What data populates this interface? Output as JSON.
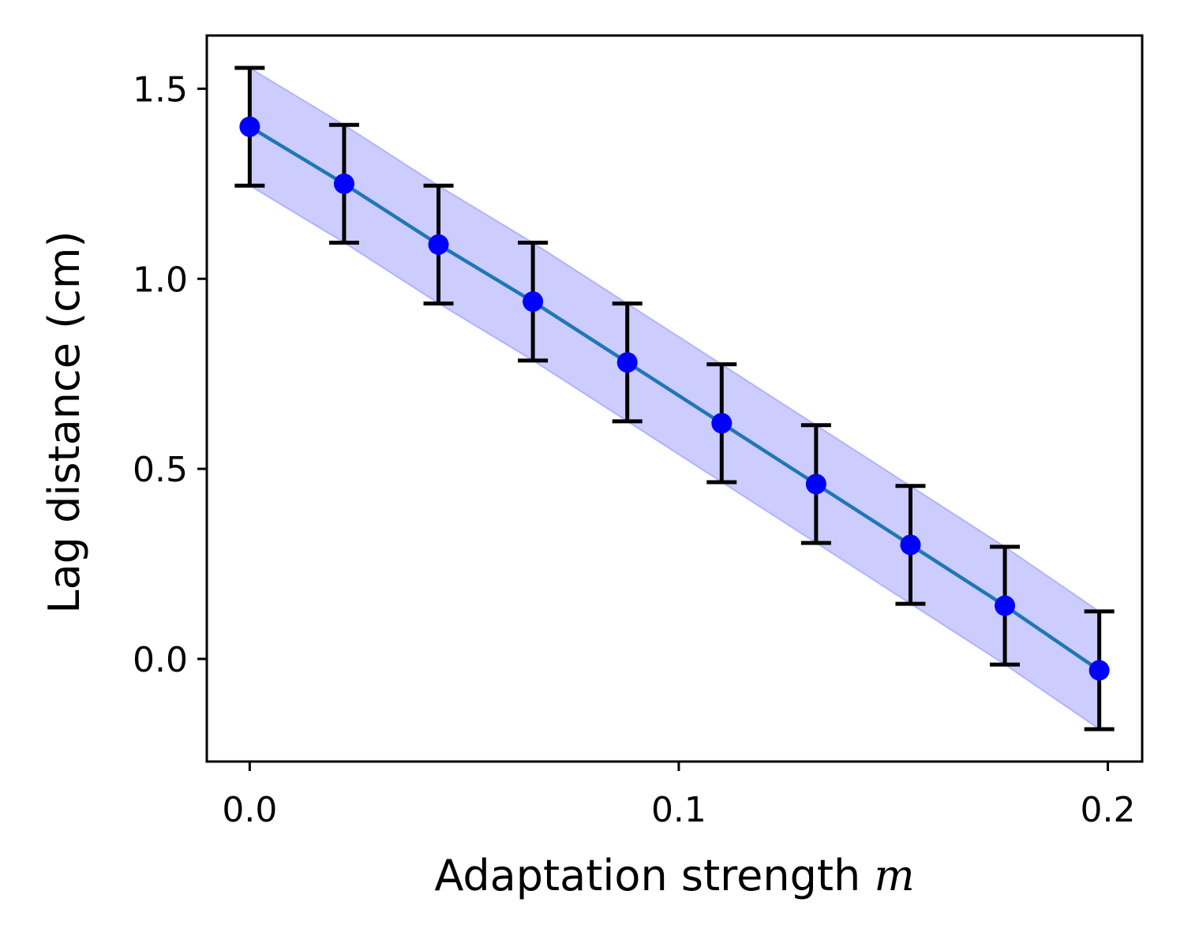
{
  "chart_data": {
    "type": "line",
    "title": "",
    "xlabel": "Adaptation strength",
    "xlabel_var": "m",
    "ylabel": "Lag distance (cm)",
    "xlim": [
      -0.01,
      0.208
    ],
    "ylim": [
      -0.27,
      1.64
    ],
    "xticks": [
      0.0,
      0.1,
      0.2
    ],
    "xtick_labels": [
      "0.0",
      "0.1",
      "0.2"
    ],
    "yticks": [
      0.0,
      0.5,
      1.0,
      1.5
    ],
    "ytick_labels": [
      "0.0",
      "0.5",
      "1.0",
      "1.5"
    ],
    "grid": false,
    "colors": {
      "line": "#1f77b4",
      "markers": "#0000ff",
      "band_fill": "#0000ff",
      "errorbars": "#000000"
    },
    "band_opacity": 0.2,
    "series": [
      {
        "x": [
          0.0,
          0.022,
          0.044,
          0.066,
          0.088,
          0.11,
          0.132,
          0.154,
          0.176,
          0.198
        ],
        "values": [
          1.4,
          1.25,
          1.09,
          0.94,
          0.78,
          0.62,
          0.46,
          0.3,
          0.14,
          -0.03
        ],
        "err": [
          0.155,
          0.155,
          0.155,
          0.155,
          0.155,
          0.155,
          0.155,
          0.155,
          0.155,
          0.155
        ]
      }
    ]
  }
}
